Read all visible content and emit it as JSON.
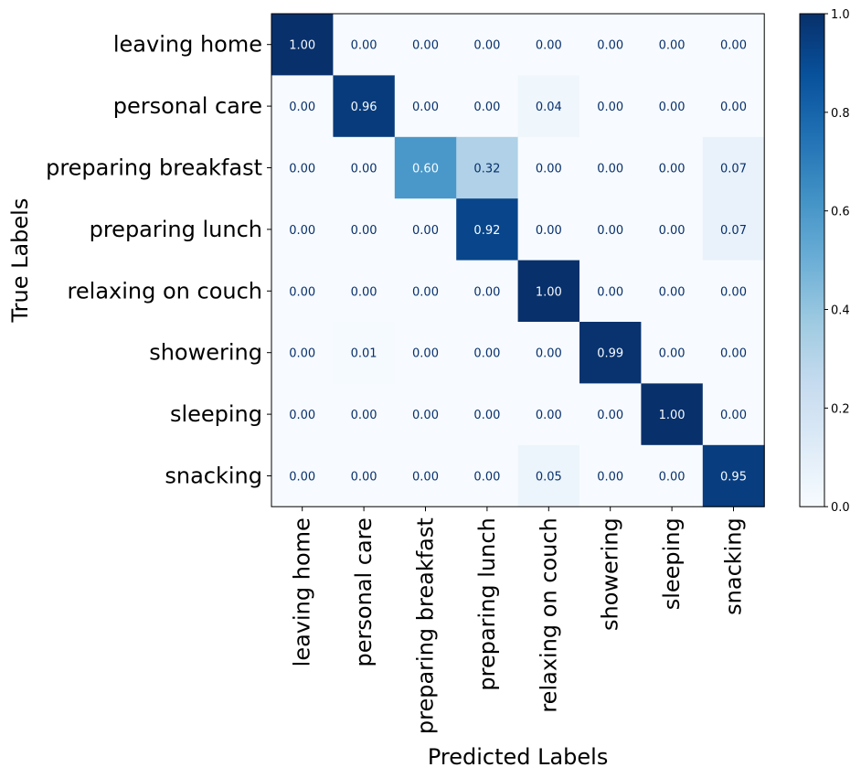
{
  "chart_data": {
    "type": "heatmap",
    "title": "",
    "xlabel": "Predicted Labels",
    "ylabel": "True Labels",
    "x_categories": [
      "leaving home",
      "personal care",
      "preparing breakfast",
      "preparing lunch",
      "relaxing on couch",
      "showering",
      "sleeping",
      "snacking"
    ],
    "y_categories": [
      "leaving home",
      "personal care",
      "preparing breakfast",
      "preparing lunch",
      "relaxing on couch",
      "showering",
      "sleeping",
      "snacking"
    ],
    "values": [
      [
        1.0,
        0.0,
        0.0,
        0.0,
        0.0,
        0.0,
        0.0,
        0.0
      ],
      [
        0.0,
        0.96,
        0.0,
        0.0,
        0.04,
        0.0,
        0.0,
        0.0
      ],
      [
        0.0,
        0.0,
        0.6,
        0.32,
        0.0,
        0.0,
        0.0,
        0.07
      ],
      [
        0.0,
        0.0,
        0.0,
        0.92,
        0.0,
        0.0,
        0.0,
        0.07
      ],
      [
        0.0,
        0.0,
        0.0,
        0.0,
        1.0,
        0.0,
        0.0,
        0.0
      ],
      [
        0.0,
        0.01,
        0.0,
        0.0,
        0.0,
        0.99,
        0.0,
        0.0
      ],
      [
        0.0,
        0.0,
        0.0,
        0.0,
        0.0,
        0.0,
        1.0,
        0.0
      ],
      [
        0.0,
        0.0,
        0.0,
        0.0,
        0.05,
        0.0,
        0.0,
        0.95
      ]
    ],
    "value_labels": [
      [
        "1.00",
        "0.00",
        "0.00",
        "0.00",
        "0.00",
        "0.00",
        "0.00",
        "0.00"
      ],
      [
        "0.00",
        "0.96",
        "0.00",
        "0.00",
        "0.04",
        "0.00",
        "0.00",
        "0.00"
      ],
      [
        "0.00",
        "0.00",
        "0.60",
        "0.32",
        "0.00",
        "0.00",
        "0.00",
        "0.07"
      ],
      [
        "0.00",
        "0.00",
        "0.00",
        "0.92",
        "0.00",
        "0.00",
        "0.00",
        "0.07"
      ],
      [
        "0.00",
        "0.00",
        "0.00",
        "0.00",
        "1.00",
        "0.00",
        "0.00",
        "0.00"
      ],
      [
        "0.00",
        "0.01",
        "0.00",
        "0.00",
        "0.00",
        "0.99",
        "0.00",
        "0.00"
      ],
      [
        "0.00",
        "0.00",
        "0.00",
        "0.00",
        "0.00",
        "0.00",
        "1.00",
        "0.00"
      ],
      [
        "0.00",
        "0.00",
        "0.00",
        "0.00",
        "0.05",
        "0.00",
        "0.00",
        "0.95"
      ]
    ],
    "colormap": "Blues",
    "colorbar": {
      "range": [
        0.0,
        1.0
      ],
      "ticks": [
        0.0,
        0.2,
        0.4,
        0.6,
        0.8,
        1.0
      ],
      "tick_labels": [
        "0.0",
        "0.2",
        "0.4",
        "0.6",
        "0.8",
        "1.0"
      ]
    },
    "text_colors": {
      "on_light": "#08306b",
      "on_dark": "#f7fbff"
    }
  }
}
